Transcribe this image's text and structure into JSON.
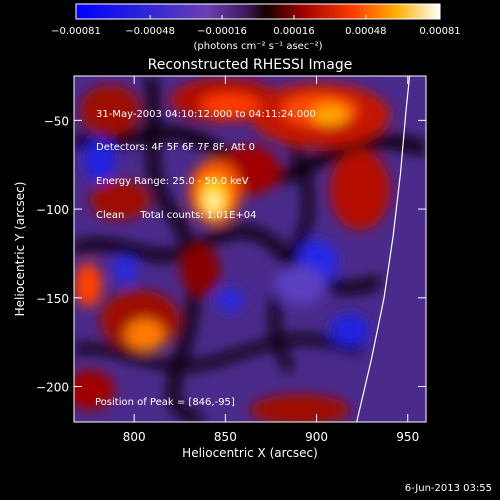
{
  "chart_data": {
    "type": "heatmap",
    "title": "Reconstructed RHESSI Image",
    "xlabel": "Heliocentric X (arcsec)",
    "ylabel": "Heliocentric Y (arcsec)",
    "xlim": [
      767,
      960
    ],
    "ylim": [
      -220,
      -25
    ],
    "x_ticks": [
      800,
      850,
      900,
      950
    ],
    "y_ticks": [
      -50,
      -100,
      -150,
      -200
    ],
    "colorbar": {
      "label": "(photons cm⁻² s⁻¹ asec⁻²)",
      "range": [
        -0.00081,
        0.00081
      ],
      "ticks": [
        "-0.00081",
        "-0.00048",
        "-0.00016",
        "0.00016",
        "0.00048",
        "0.00081"
      ]
    },
    "info_lines": [
      "31-May-2003 04:10:12.000 to 04:11:24.000",
      "Detectors: 4F 5F 6F 7F 8F, Att 0",
      "Energy Range: 25.0 - 50.0 keV",
      "Clean     Total counts: 1.01E+04"
    ],
    "peak_label": "Position of Peak = [846,-95]",
    "peak": [
      846,
      -95
    ],
    "limb_curve": [
      [
        922,
        -220
      ],
      [
        930,
        -185
      ],
      [
        937,
        -150
      ],
      [
        942,
        -115
      ],
      [
        946,
        -80
      ],
      [
        949,
        -45
      ],
      [
        951,
        -25
      ]
    ]
  },
  "footer": {
    "date": "6-Jun-2013 03:55"
  }
}
